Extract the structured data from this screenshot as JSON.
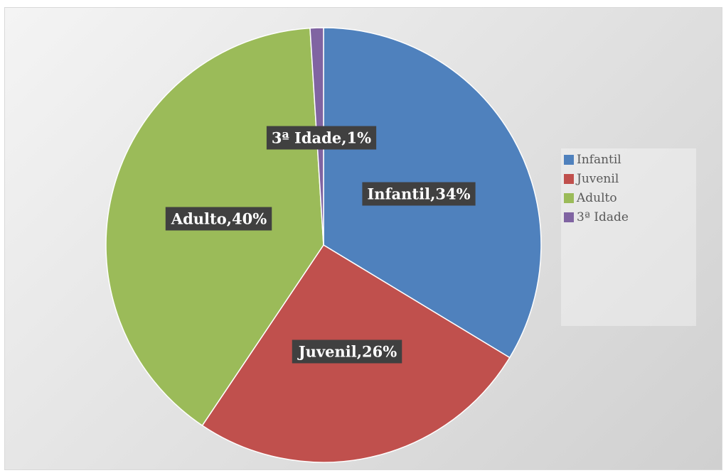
{
  "chart_data": {
    "type": "pie",
    "slices": [
      {
        "name": "Infantil",
        "value": 34,
        "label": "Infantil,34%",
        "color": "#4f81bd"
      },
      {
        "name": "Juvenil",
        "value": 26,
        "label": "Juvenil,26%",
        "color": "#c0504d"
      },
      {
        "name": "Adulto",
        "value": 40,
        "label": "Adulto,40%",
        "color": "#9bbb59"
      },
      {
        "name": "3ª Idade",
        "value": 1,
        "label": "3ª Idade,1%",
        "color": "#8064a2"
      }
    ],
    "legend_position": "right",
    "start_angle": "top",
    "direction": "clockwise"
  }
}
